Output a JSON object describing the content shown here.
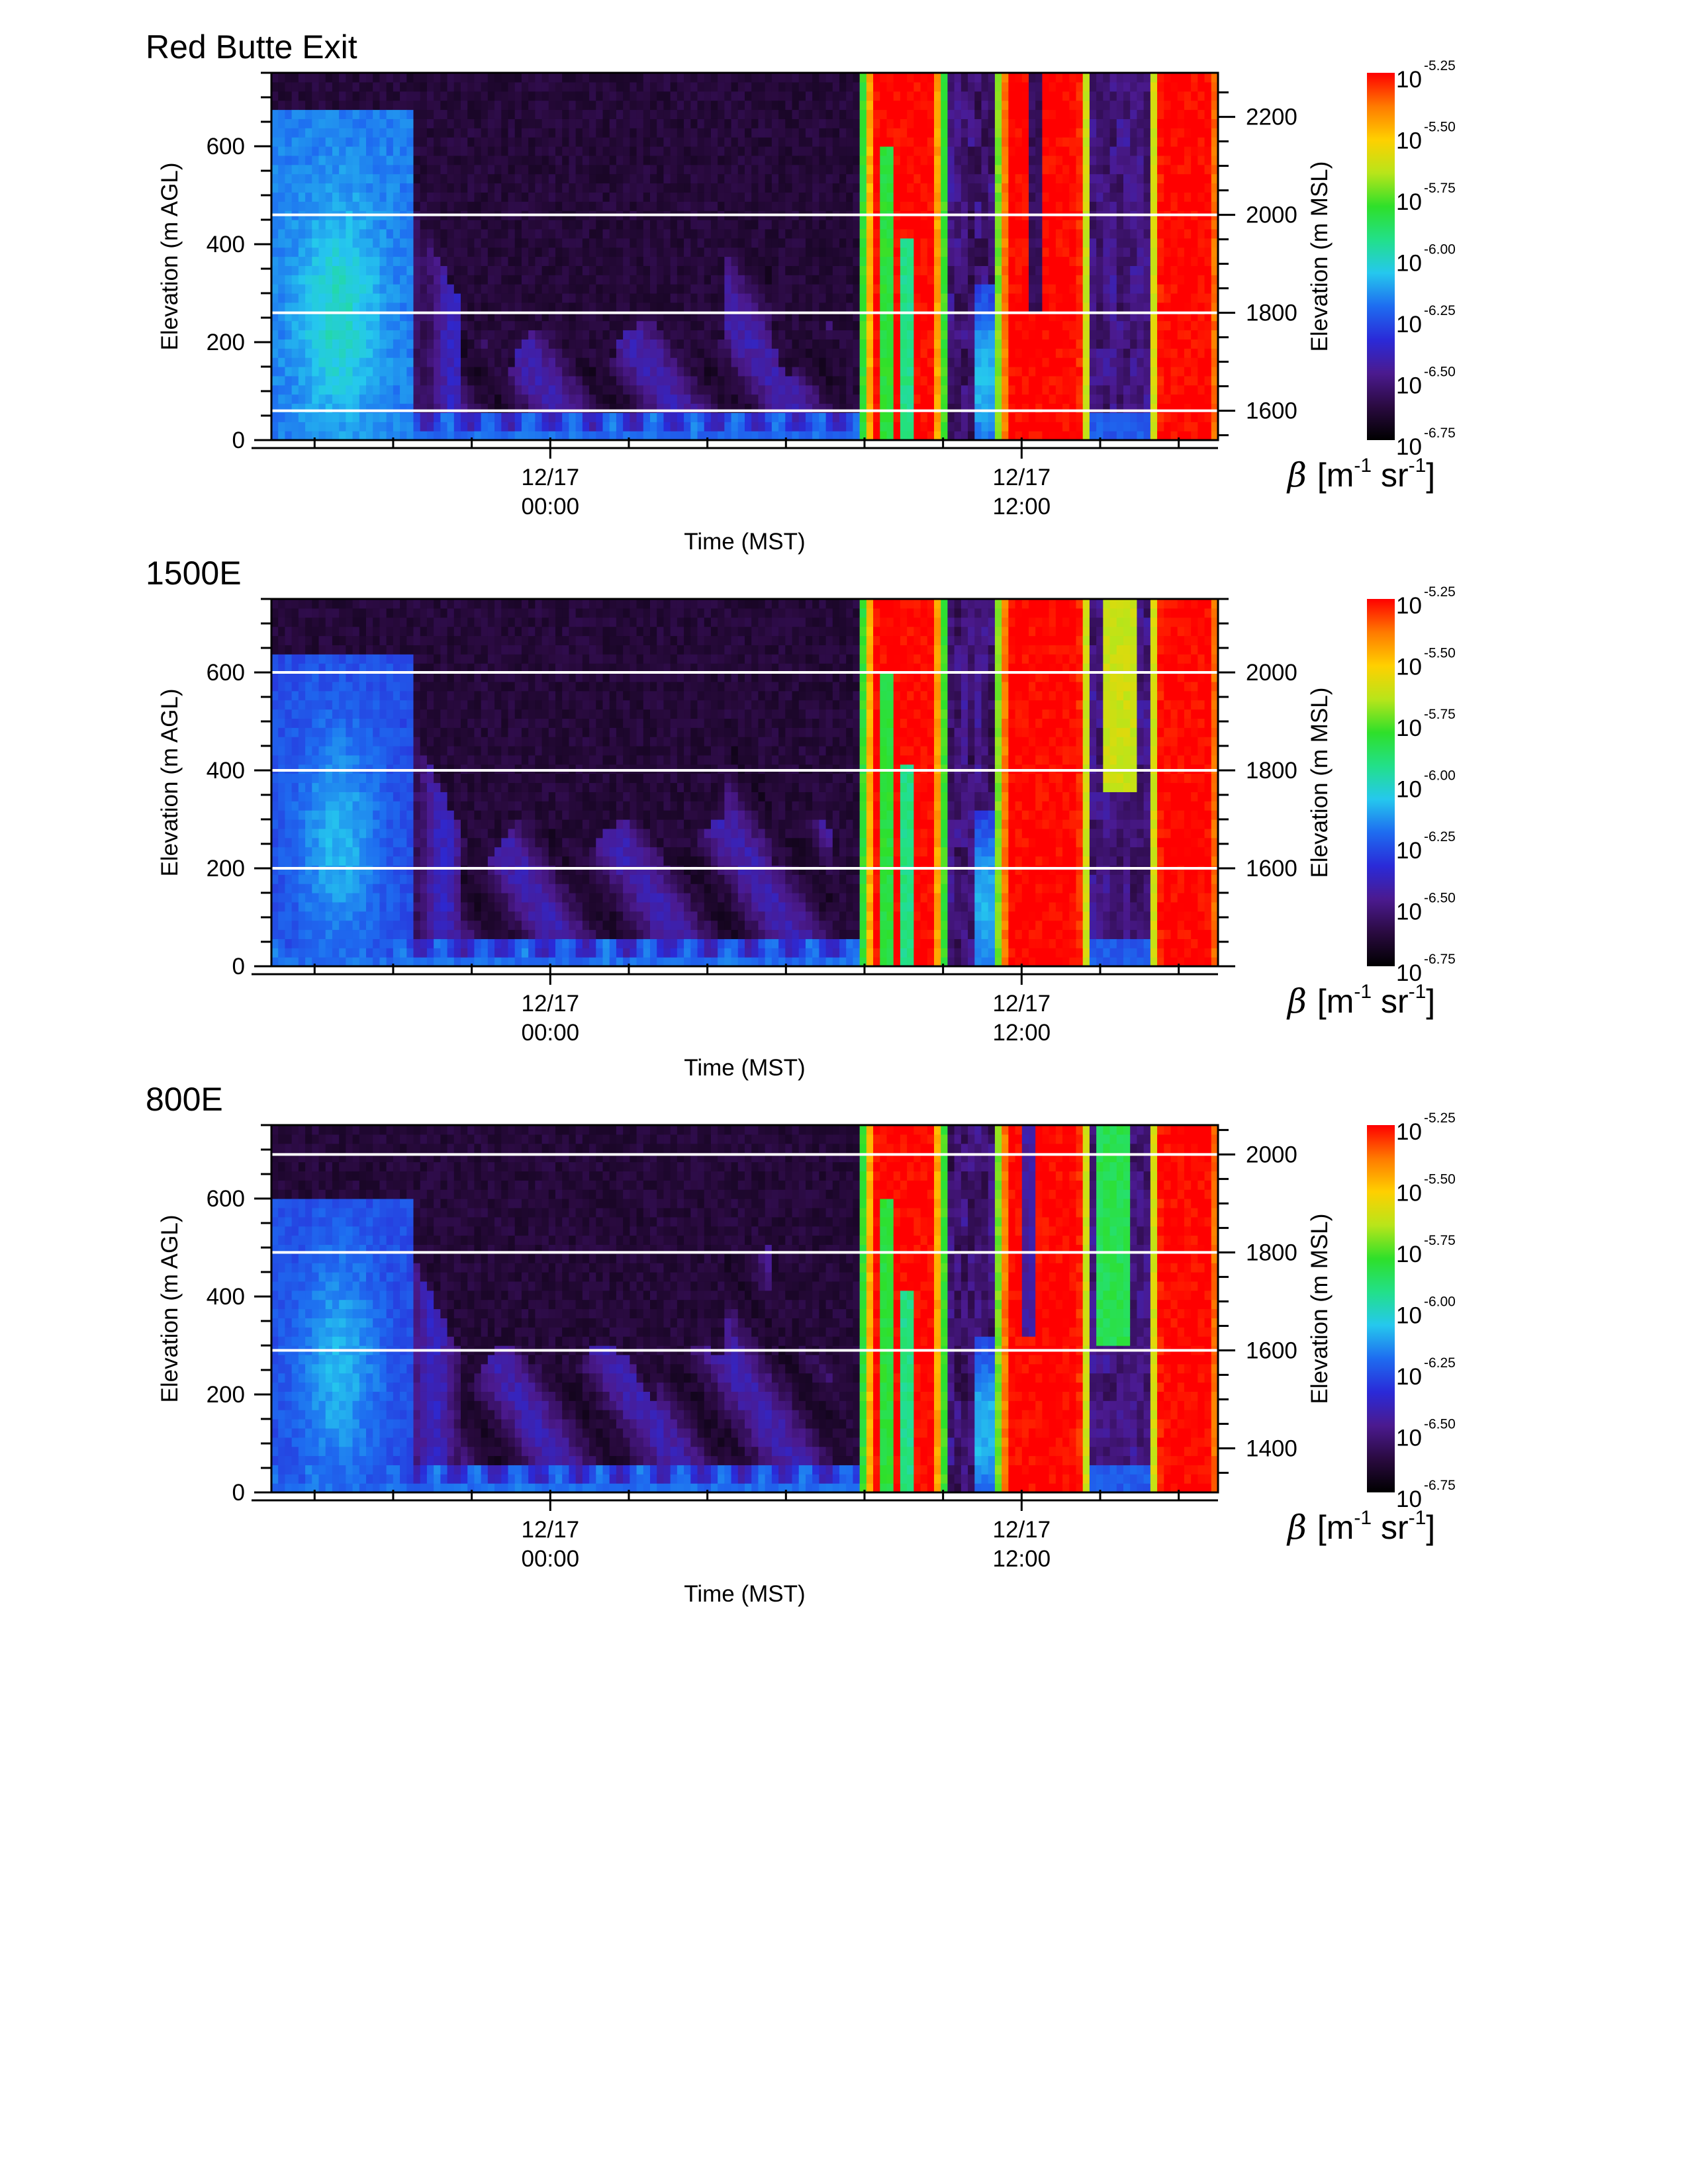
{
  "chart_data": [
    {
      "type": "heatmap",
      "title": "Red Butte Exit",
      "xlabel": "Time (MST)",
      "ylabel": "Elevation (m AGL)",
      "ylabel_right": "Elevation (m MSL)",
      "x_ticks": [
        {
          "t": 6,
          "date": "12/17",
          "time": "00:00"
        },
        {
          "t": 18,
          "date": "12/17",
          "time": "12:00"
        }
      ],
      "xlim": [
        -1.1,
        23.0
      ],
      "ylim": [
        0,
        750
      ],
      "y_ticks": [
        0,
        200,
        400,
        600
      ],
      "y_right_ticks": [
        1600,
        1800,
        2000,
        2200
      ],
      "msl_offset": 1540,
      "reference_lines_msl": [
        1600,
        1800,
        2000
      ],
      "colorbar": {
        "label_symbol": "β",
        "label_unit": "[m",
        "label_exp1": "-1",
        "label_unit2": " sr",
        "label_exp2": "-1",
        "label_close": "]",
        "base": "10",
        "exponents": [
          "-5.25",
          "-5.50",
          "-5.75",
          "-6.00",
          "-6.25",
          "-6.50",
          "-6.75"
        ]
      },
      "grid": false
    },
    {
      "type": "heatmap",
      "title": "1500E",
      "xlabel": "Time (MST)",
      "ylabel": "Elevation (m AGL)",
      "ylabel_right": "Elevation (m MSL)",
      "x_ticks": [
        {
          "t": 6,
          "date": "12/17",
          "time": "00:00"
        },
        {
          "t": 18,
          "date": "12/17",
          "time": "12:00"
        }
      ],
      "xlim": [
        -1.1,
        23.0
      ],
      "ylim": [
        0,
        750
      ],
      "y_ticks": [
        0,
        200,
        400,
        600
      ],
      "y_right_ticks": [
        1600,
        1800,
        2000
      ],
      "msl_offset": 1400,
      "reference_lines_msl": [
        1600,
        1800,
        2000
      ],
      "colorbar": {
        "label_symbol": "β",
        "label_unit": "[m",
        "label_exp1": "-1",
        "label_unit2": " sr",
        "label_exp2": "-1",
        "label_close": "]",
        "base": "10",
        "exponents": [
          "-5.25",
          "-5.50",
          "-5.75",
          "-6.00",
          "-6.25",
          "-6.50",
          "-6.75"
        ]
      },
      "grid": false
    },
    {
      "type": "heatmap",
      "title": "800E",
      "xlabel": "Time (MST)",
      "ylabel": "Elevation (m AGL)",
      "ylabel_right": "Elevation (m MSL)",
      "x_ticks": [
        {
          "t": 6,
          "date": "12/17",
          "time": "00:00"
        },
        {
          "t": 18,
          "date": "12/17",
          "time": "12:00"
        }
      ],
      "xlim": [
        -1.1,
        23.0
      ],
      "ylim": [
        0,
        750
      ],
      "y_ticks": [
        0,
        200,
        400,
        600
      ],
      "y_right_ticks": [
        1400,
        1600,
        1800,
        2000
      ],
      "msl_offset": 1310,
      "reference_lines_msl": [
        1600,
        1800,
        2000
      ],
      "colorbar": {
        "label_symbol": "β",
        "label_unit": "[m",
        "label_exp1": "-1",
        "label_unit2": " sr",
        "label_exp2": "-1",
        "label_close": "]",
        "base": "10",
        "exponents": [
          "-5.25",
          "-5.50",
          "-5.75",
          "-6.00",
          "-6.25",
          "-6.50",
          "-6.75"
        ]
      },
      "grid": false
    }
  ],
  "colors": {
    "colormap": [
      "#000000",
      "#2a0a40",
      "#4b1a8f",
      "#2a2ad8",
      "#1e6cf0",
      "#25c8ee",
      "#22e08a",
      "#2ee02a",
      "#b8e51a",
      "#ffd000",
      "#ff7a00",
      "#ff0000"
    ],
    "reference_line": "#ffffff"
  }
}
